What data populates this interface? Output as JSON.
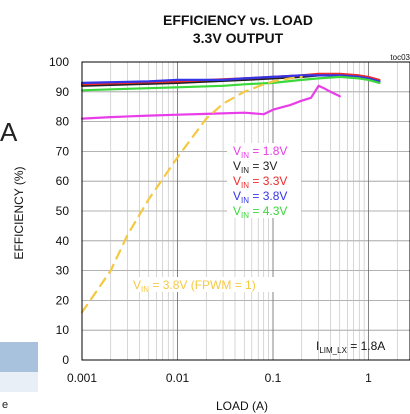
{
  "chart_data": {
    "type": "line",
    "title": "EFFICIENCY vs. LOAD",
    "subtitle": "3.3V OUTPUT",
    "figure_id": "toc03",
    "xlabel": "LOAD (A)",
    "ylabel": "EFFICIENCY (%)",
    "xscale": "log",
    "xlim": [
      0.001,
      3
    ],
    "ylim": [
      0,
      100
    ],
    "x_ticks": [
      0.001,
      0.01,
      0.1,
      1
    ],
    "x_tick_labels": [
      "0.001",
      "0.01",
      "0.1",
      "1"
    ],
    "y_ticks": [
      0,
      10,
      20,
      30,
      40,
      50,
      60,
      70,
      80,
      90,
      100
    ],
    "grid": true,
    "annotation": {
      "main": "I",
      "sub": "LIM_LX",
      "rest": " = 1.8A"
    },
    "fpwm_label": {
      "main": "V",
      "sub": "IN",
      "rest": " = 3.8V (FPWM = 1)",
      "color": "#f5c842"
    },
    "series": [
      {
        "legend": {
          "main": "V",
          "sub": "IN",
          "rest": " = 1.8V"
        },
        "color": "#e83de8",
        "x": [
          0.001,
          0.002,
          0.005,
          0.01,
          0.02,
          0.05,
          0.08,
          0.1,
          0.13,
          0.15,
          0.2,
          0.25,
          0.3,
          0.35,
          0.4,
          0.5
        ],
        "y": [
          81,
          81.5,
          82,
          82.3,
          82.6,
          83,
          82.5,
          84,
          85,
          85.5,
          87,
          88,
          92,
          91,
          90,
          88.5
        ]
      },
      {
        "legend": {
          "main": "V",
          "sub": "IN",
          "rest": " = 3V"
        },
        "color": "#222222",
        "x": [
          0.001,
          0.01,
          0.05,
          0.1,
          0.2,
          0.3,
          0.5,
          0.8,
          1.0,
          1.3
        ],
        "y": [
          92,
          93,
          94,
          94.5,
          95,
          95.5,
          95.5,
          95,
          94.5,
          93.5
        ]
      },
      {
        "legend": {
          "main": "V",
          "sub": "IN",
          "rest": " = 3.3V"
        },
        "color": "#ee2a2a",
        "x": [
          0.001,
          0.01,
          0.05,
          0.1,
          0.2,
          0.3,
          0.5,
          0.8,
          1.0,
          1.3
        ],
        "y": [
          92.5,
          93.5,
          94.5,
          95,
          95.5,
          96,
          96,
          95.5,
          95,
          94
        ]
      },
      {
        "legend": {
          "main": "V",
          "sub": "IN",
          "rest": " = 3.8V"
        },
        "color": "#3535e8",
        "x": [
          0.001,
          0.005,
          0.01,
          0.03,
          0.05,
          0.1,
          0.2,
          0.3,
          0.5,
          0.8,
          1.0,
          1.3
        ],
        "y": [
          93,
          93.5,
          94,
          94,
          94.5,
          95,
          95.5,
          95.5,
          95.5,
          95,
          94.5,
          93.5
        ]
      },
      {
        "legend": {
          "main": "V",
          "sub": "IN",
          "rest": " = 4.3V"
        },
        "color": "#3ad83a",
        "x": [
          0.001,
          0.003,
          0.01,
          0.03,
          0.05,
          0.1,
          0.2,
          0.3,
          0.5,
          0.8,
          1.0,
          1.3
        ],
        "y": [
          90.5,
          91,
          91.5,
          92,
          92.5,
          93,
          94,
          94.5,
          95,
          94.5,
          94,
          93
        ]
      },
      {
        "name_ref": "fpwm_label",
        "color": "#f5c842",
        "dashed": true,
        "x": [
          0.001,
          0.002,
          0.003,
          0.005,
          0.01,
          0.02,
          0.03,
          0.05,
          0.08,
          0.1,
          0.15,
          0.2
        ],
        "y": [
          16,
          30,
          42,
          54,
          68,
          81,
          86,
          90,
          92.5,
          93.5,
          94.5,
          95
        ]
      }
    ]
  },
  "page_fragments": {
    "left_letter": "A",
    "left_word": "e"
  }
}
